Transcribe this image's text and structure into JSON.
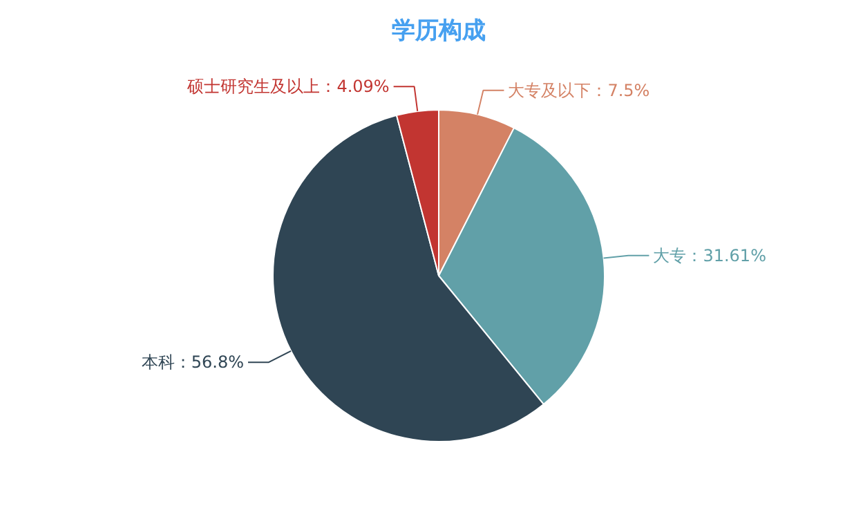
{
  "chart_data": {
    "type": "pie",
    "title": "学历构成",
    "categories": [
      "大专及以下",
      "大专",
      "本科",
      "硕士研究生及以上"
    ],
    "values": [
      7.5,
      31.61,
      56.8,
      4.09
    ],
    "value_labels": [
      "7.5%",
      "31.61%",
      "56.8%",
      "4.09%"
    ],
    "colors": [
      "#d48265",
      "#61a0a8",
      "#2f4554",
      "#c23531"
    ]
  }
}
